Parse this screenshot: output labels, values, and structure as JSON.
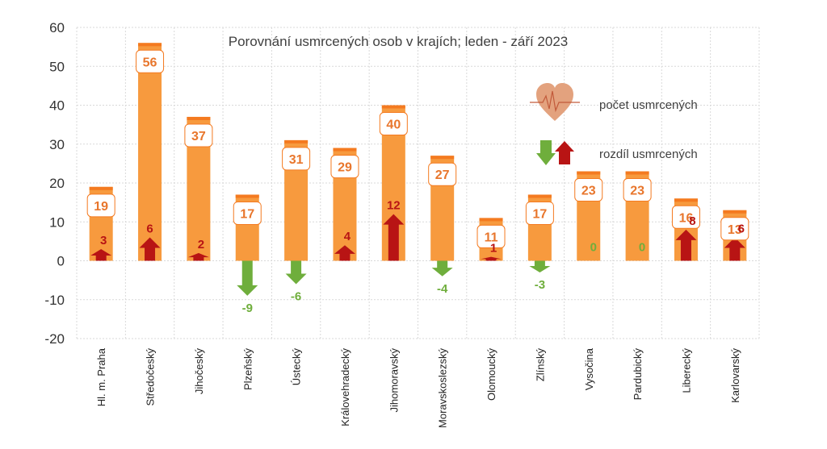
{
  "chart_data": {
    "type": "bar",
    "title": "Porovnání usmrcených osob v krajích; leden - září 2023",
    "categories": [
      "Hl. m. Praha",
      "Středočeský",
      "Jihočeský",
      "Plzeňský",
      "Ústecký",
      "Královehradecký",
      "Jihomoravský",
      "Moravskoslezský",
      "Olomoucký",
      "Zlínský",
      "Vysočina",
      "Pardubický",
      "Liberecký",
      "Karlovarský"
    ],
    "series": [
      {
        "name": "počet usmrcených",
        "values": [
          19,
          56,
          37,
          17,
          31,
          29,
          40,
          27,
          11,
          17,
          23,
          23,
          16,
          13
        ]
      },
      {
        "name": "rozdíl usmrcených",
        "values": [
          3,
          6,
          2,
          -9,
          -6,
          4,
          12,
          -4,
          1,
          -3,
          0,
          0,
          8,
          6
        ]
      }
    ],
    "ylim": [
      -20,
      60
    ],
    "yticks": [
      -20,
      -10,
      0,
      10,
      20,
      30,
      40,
      50,
      60
    ],
    "grid": true,
    "legend_position": "top-right",
    "colors": {
      "bar": "#F79A3E",
      "bar_top": "#F47A20",
      "bar_label_text": "#E8762C",
      "increase": "#B81414",
      "decrease": "#6FAE3C",
      "grid": "#D9D9D9",
      "heart": "#E3A27E"
    },
    "legend_icons": {
      "count": "heart-pulse-icon",
      "difference": "up-down-arrows-icon"
    }
  }
}
